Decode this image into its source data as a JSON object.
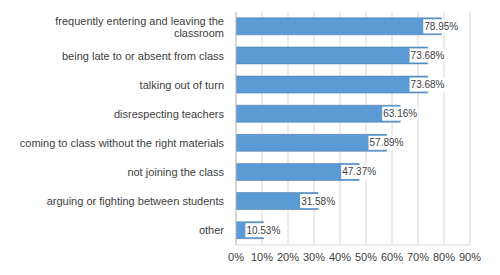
{
  "chart_data": {
    "type": "bar",
    "orientation": "horizontal",
    "categories": [
      "frequently entering and leaving the classroom",
      "being late to or absent from class",
      "talking out of turn",
      "disrespecting teachers",
      "coming to class without the right materials",
      "not joining the class",
      "arguing or fighting between students",
      "other"
    ],
    "values": [
      78.95,
      73.68,
      73.68,
      63.16,
      57.89,
      47.37,
      31.58,
      10.53
    ],
    "value_labels": [
      "78.95%",
      "73.68%",
      "73.68%",
      "63.16%",
      "57.89%",
      "47.37%",
      "31.58%",
      "10.53%"
    ],
    "color": "#5b9bd5",
    "xlim": [
      0,
      90
    ],
    "xticks": [
      {
        "value": 0,
        "label": "0%"
      },
      {
        "value": 10,
        "label": "10%"
      },
      {
        "value": 20,
        "label": "20%"
      },
      {
        "value": 30,
        "label": "30%"
      },
      {
        "value": 40,
        "label": "40%"
      },
      {
        "value": 50,
        "label": "50%"
      },
      {
        "value": 60,
        "label": "60%"
      },
      {
        "value": 70,
        "label": "70%"
      },
      {
        "value": 80,
        "label": "80%"
      },
      {
        "value": 90,
        "label": "90%"
      }
    ],
    "grid": true,
    "data_labels": true
  }
}
